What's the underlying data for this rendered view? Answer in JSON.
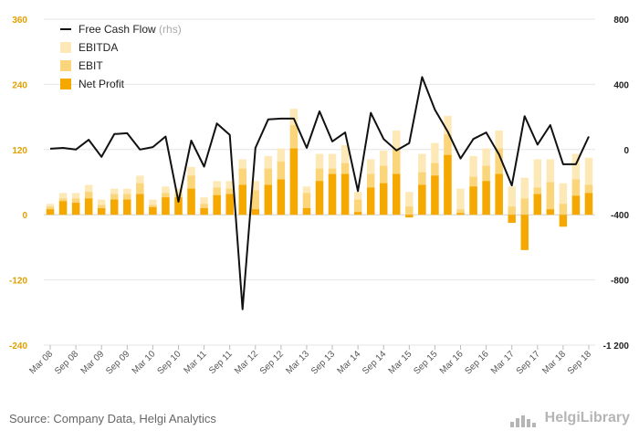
{
  "chart_data": {
    "type": "bar+line",
    "categories": [
      "Mar 08",
      "Jun 08",
      "Sep 08",
      "Dec 08",
      "Mar 09",
      "Jun 09",
      "Sep 09",
      "Dec 09",
      "Mar 10",
      "Jun 10",
      "Sep 10",
      "Dec 10",
      "Mar 11",
      "Jun 11",
      "Sep 11",
      "Dec 11",
      "Mar 12",
      "Jun 12",
      "Sep 12",
      "Dec 12",
      "Mar 13",
      "Jun 13",
      "Sep 13",
      "Dec 13",
      "Mar 14",
      "Jun 14",
      "Sep 14",
      "Dec 14",
      "Mar 15",
      "Jun 15",
      "Sep 15",
      "Dec 15",
      "Mar 16",
      "Jun 16",
      "Sep 16",
      "Dec 16",
      "Mar 17",
      "Jun 17",
      "Sep 17",
      "Dec 17",
      "Mar 18",
      "Jun 18",
      "Sep 18"
    ],
    "tick_labels": [
      "Mar 08",
      "Sep 08",
      "Mar 09",
      "Sep 09",
      "Mar 10",
      "Sep 10",
      "Mar 11",
      "Sep 11",
      "Mar 12",
      "Sep 12",
      "Mar 13",
      "Sep 13",
      "Mar 14",
      "Sep 14",
      "Mar 15",
      "Sep 15",
      "Mar 16",
      "Sep 16",
      "Mar 17",
      "Sep 17",
      "Mar 18",
      "Sep 18"
    ],
    "series": [
      {
        "name": "EBITDA",
        "axis": "left",
        "color": "#fde9b8",
        "values": [
          20,
          40,
          40,
          55,
          28,
          48,
          48,
          72,
          28,
          52,
          48,
          88,
          32,
          62,
          62,
          102,
          62,
          108,
          122,
          195,
          52,
          112,
          112,
          128,
          42,
          102,
          118,
          155,
          42,
          112,
          132,
          182,
          48,
          108,
          122,
          155,
          52,
          68,
          102,
          102,
          58,
          112,
          105
        ]
      },
      {
        "name": "EBIT",
        "axis": "left",
        "color": "#fbd57a",
        "values": [
          15,
          30,
          30,
          42,
          18,
          38,
          38,
          58,
          18,
          40,
          38,
          72,
          20,
          50,
          48,
          85,
          45,
          85,
          98,
          165,
          40,
          85,
          85,
          95,
          28,
          75,
          90,
          122,
          15,
          78,
          95,
          148,
          10,
          70,
          90,
          122,
          15,
          30,
          50,
          60,
          20,
          65,
          55
        ]
      },
      {
        "name": "Net Profit",
        "axis": "left",
        "color": "#f5a800",
        "values": [
          10,
          25,
          22,
          30,
          12,
          28,
          28,
          38,
          14,
          32,
          32,
          48,
          12,
          36,
          38,
          55,
          10,
          55,
          65,
          122,
          12,
          62,
          75,
          75,
          5,
          50,
          58,
          75,
          -5,
          55,
          72,
          110,
          3,
          52,
          62,
          75,
          -15,
          -65,
          38,
          10,
          -22,
          35,
          40
        ]
      },
      {
        "name": "Free Cash Flow",
        "axis": "right",
        "note": "(rhs)",
        "color": "#111111",
        "values": [
          5,
          10,
          0,
          60,
          -45,
          95,
          100,
          0,
          15,
          80,
          -320,
          55,
          -105,
          160,
          90,
          -980,
          10,
          185,
          190,
          190,
          10,
          235,
          50,
          105,
          -255,
          225,
          65,
          -5,
          40,
          445,
          245,
          110,
          -55,
          65,
          105,
          -30,
          -220,
          205,
          30,
          150,
          -90,
          -90,
          80
        ]
      }
    ],
    "y_left": {
      "min": -240,
      "max": 360,
      "ticks": [
        360,
        240,
        120,
        0,
        -120,
        -240
      ]
    },
    "y_right": {
      "min": -1200,
      "max": 800,
      "ticks": [
        800,
        400,
        0,
        -400,
        -800,
        -1200
      ],
      "tick_labels": [
        "800",
        "400",
        "0",
        "-400",
        "-800",
        "-1 200"
      ]
    },
    "legend_position": "top-left"
  },
  "footer": {
    "source": "Source: Company Data, Helgi Analytics",
    "brand": "HelgiLibrary"
  }
}
